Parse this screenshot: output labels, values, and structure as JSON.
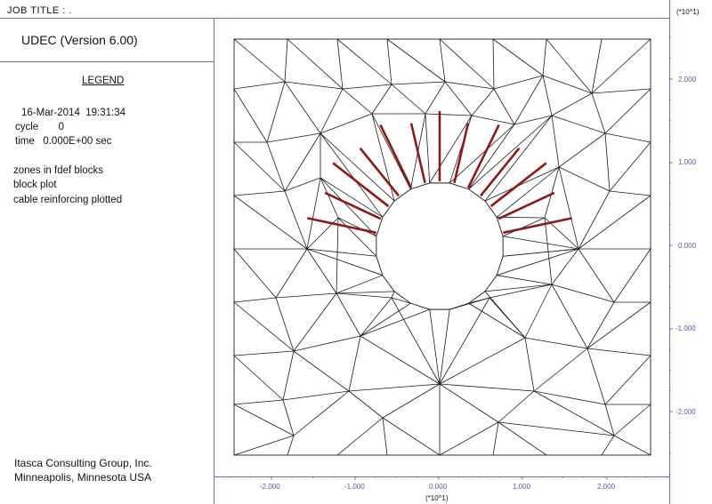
{
  "header": {
    "job_title": "JOB TITLE : ."
  },
  "legend": {
    "app_title": "UDEC (Version 6.00)",
    "title": "LEGEND",
    "date": "16-Mar-2014",
    "clock": "19:31:34",
    "cycle_label": "cycle",
    "cycle_value": "0",
    "time_label": "time",
    "time_value": "0.000E+00 sec",
    "items": [
      "zones in fdef blocks",
      "block plot",
      "cable reinforcing plotted"
    ]
  },
  "footer": {
    "company": "Itasca Consulting Group, Inc.",
    "location": "Minneapolis, Minnesota  USA"
  },
  "axes": {
    "scale_note_y": "(*10^1)",
    "scale_note_x": "(*10^1)",
    "y_ticks": [
      "2.000",
      "1.000",
      "0.000",
      "-1.000",
      "-2.000"
    ],
    "x_ticks": [
      "-2.000",
      "-1.000",
      "0.000",
      "1.000",
      "2.000"
    ]
  },
  "colors": {
    "frame": "#6f6fb0",
    "mesh": "#1a1a1a",
    "cable": "#8b1a1a",
    "label": "#5a5a9c"
  }
}
